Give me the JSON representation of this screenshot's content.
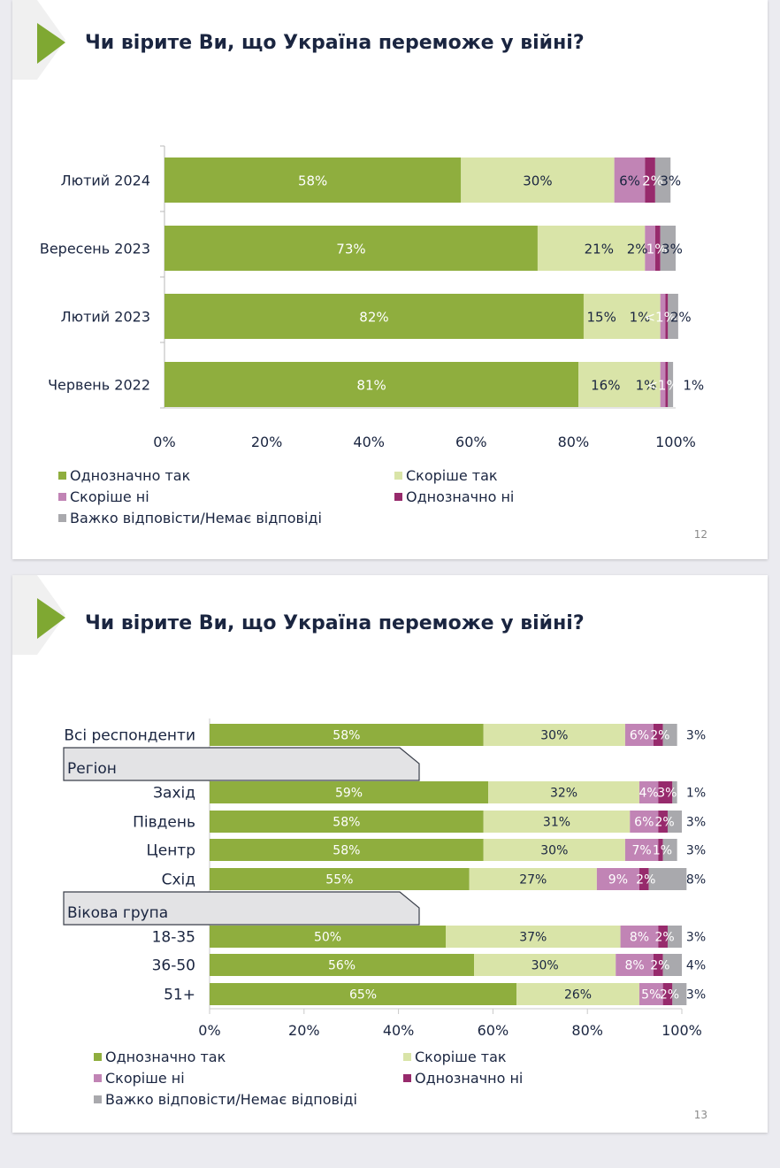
{
  "colors": {
    "definitely_yes": "#8fae3e",
    "rather_yes": "#d9e4a8",
    "rather_no": "#c184b5",
    "definitely_no": "#972a6c",
    "hard_to_say": "#a9a9ad",
    "title": "#1a2540",
    "accent": "#7fa832"
  },
  "slides": [
    {
      "title": "Чи вірите Ви, що Україна переможе у війні?",
      "page_number": "12"
    },
    {
      "title": "Чи вірите Ви, що Україна переможе у війні?",
      "page_number": "13"
    }
  ],
  "legend": [
    {
      "label": "Однозначно так",
      "color_key": "definitely_yes"
    },
    {
      "label": "Скоріше так",
      "color_key": "rather_yes"
    },
    {
      "label": "Скоріше ні",
      "color_key": "rather_no"
    },
    {
      "label": "Однозначно ні",
      "color_key": "definitely_no"
    },
    {
      "label": "Важко відповісти/Немає відповіді",
      "color_key": "hard_to_say"
    }
  ],
  "chart_data": [
    {
      "type": "bar",
      "orientation": "horizontal-stacked-100",
      "title": "Чи вірите Ви, що Україна переможе у війні?",
      "categories": [
        "Лютий 2024",
        "Вересень 2023",
        "Лютий 2023",
        "Червень 2022"
      ],
      "series": [
        {
          "name": "Однозначно так",
          "values": [
            58,
            73,
            82,
            81
          ],
          "labels": [
            "58%",
            "73%",
            "82%",
            "81%"
          ]
        },
        {
          "name": "Скоріше так",
          "values": [
            30,
            21,
            15,
            16
          ],
          "labels": [
            "30%",
            "21%",
            "15%",
            "16%"
          ]
        },
        {
          "name": "Скоріше ні",
          "values": [
            6,
            2,
            1,
            1
          ],
          "labels": [
            "6%",
            "2%",
            "1%",
            "1%"
          ]
        },
        {
          "name": "Однозначно ні",
          "values": [
            2,
            1,
            0.5,
            0.5
          ],
          "labels": [
            "2%",
            "1%",
            "<1%",
            "<1%"
          ]
        },
        {
          "name": "Важко відповісти/Немає відповіді",
          "values": [
            3,
            3,
            2,
            1
          ],
          "labels": [
            "3%",
            "3%",
            "2%",
            "1%"
          ]
        }
      ],
      "xticks": [
        "0%",
        "20%",
        "40%",
        "60%",
        "80%",
        "100%"
      ],
      "xlim": [
        0,
        100
      ],
      "legend_position": "bottom",
      "grid": false
    },
    {
      "type": "bar",
      "orientation": "horizontal-stacked-100",
      "title": "Чи вірите Ви, що Україна переможе у війні?",
      "rows": [
        {
          "kind": "bar",
          "label": "Всі респонденти",
          "values": [
            58,
            30,
            6,
            2,
            3
          ],
          "labels": [
            "58%",
            "30%",
            "6%",
            "2%",
            "3%"
          ]
        },
        {
          "kind": "group",
          "label": "Регіон"
        },
        {
          "kind": "bar",
          "label": "Захід",
          "values": [
            59,
            32,
            4,
            3,
            1
          ],
          "labels": [
            "59%",
            "32%",
            "4%",
            "3%",
            "1%"
          ]
        },
        {
          "kind": "bar",
          "label": "Південь",
          "values": [
            58,
            31,
            6,
            2,
            3
          ],
          "labels": [
            "58%",
            "31%",
            "6%",
            "2%",
            "3%"
          ]
        },
        {
          "kind": "bar",
          "label": "Центр",
          "values": [
            58,
            30,
            7,
            1,
            3
          ],
          "labels": [
            "58%",
            "30%",
            "7%",
            "1%",
            "3%"
          ]
        },
        {
          "kind": "bar",
          "label": "Схід",
          "values": [
            55,
            27,
            9,
            2,
            8
          ],
          "labels": [
            "55%",
            "27%",
            "9%",
            "2%",
            "8%"
          ]
        },
        {
          "kind": "group",
          "label": "Вікова група"
        },
        {
          "kind": "bar",
          "label": "18-35",
          "values": [
            50,
            37,
            8,
            2,
            3
          ],
          "labels": [
            "50%",
            "37%",
            "8%",
            "2%",
            "3%"
          ]
        },
        {
          "kind": "bar",
          "label": "36-50",
          "values": [
            56,
            30,
            8,
            2,
            4
          ],
          "labels": [
            "56%",
            "30%",
            "8%",
            "2%",
            "4%"
          ]
        },
        {
          "kind": "bar",
          "label": "51+",
          "values": [
            65,
            26,
            5,
            2,
            3
          ],
          "labels": [
            "65%",
            "26%",
            "5%",
            "2%",
            "3%"
          ]
        }
      ],
      "series_names": [
        "Однозначно так",
        "Скоріше так",
        "Скоріше ні",
        "Однозначно ні",
        "Важко відповісти/Немає відповіді"
      ],
      "xticks": [
        "0%",
        "20%",
        "40%",
        "60%",
        "80%",
        "100%"
      ],
      "xlim": [
        0,
        100
      ],
      "legend_position": "bottom",
      "grid": false
    }
  ]
}
